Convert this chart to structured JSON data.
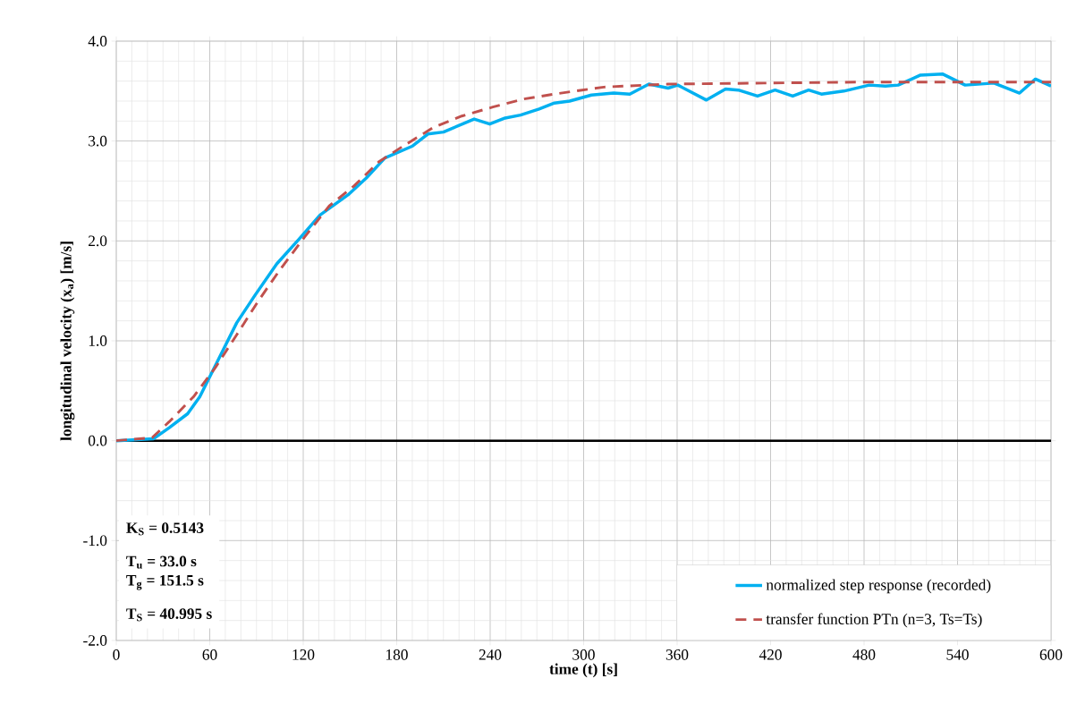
{
  "chart_data": {
    "type": "line",
    "xlabel": "time (t) [s]",
    "ylabel": "longitudinal velocity (x$_{a}$) [m/s]",
    "xlim": [
      0,
      600
    ],
    "xticks": [
      0,
      60,
      120,
      180,
      240,
      300,
      360,
      420,
      480,
      540,
      600
    ],
    "ylim": [
      -2,
      4
    ],
    "yticks": [
      {
        "value": -2,
        "label": "-2.0"
      },
      {
        "value": -1,
        "label": "-1.0"
      },
      {
        "value": 0,
        "label": "0.0"
      },
      {
        "value": 1,
        "label": "1.0"
      },
      {
        "value": 2,
        "label": "2.0"
      },
      {
        "value": 3,
        "label": "3.0"
      },
      {
        "value": 4,
        "label": "4.0"
      }
    ],
    "grid": true,
    "legend": "bottom right",
    "ref_lines": [
      {
        "axis": "y",
        "value": 0,
        "color": "#000000"
      }
    ],
    "annotations": [
      "K$_{S}$ = 0.5143",
      "T$_{u}$ = 33.0 s",
      "T$_{g}$ = 151.5 s",
      "T$_{S}$ = 40.995 s"
    ],
    "series": [
      {
        "name": "normalized step response (recorded)",
        "color": "#00b0f0",
        "line_style": "solid",
        "x": [
          0,
          24,
          34,
          45.8,
          53.6,
          63.5,
          77.3,
          89.2,
          103,
          116.9,
          130.8,
          148.7,
          160.5,
          172.4,
          190.2,
          200,
          210,
          229.7,
          239.7,
          249.6,
          259.5,
          271.4,
          281.2,
          291,
          305,
          319.3,
          329.6,
          341.9,
          354.2,
          360.4,
          378.8,
          391.1,
          399.3,
          411.6,
          422.9,
          434.2,
          444.4,
          452.6,
          467,
          483.3,
          493.7,
          501.9,
          516.2,
          530.6,
          544.9,
          563.4,
          579.8,
          590,
          600
        ],
        "values": [
          0,
          0.02,
          0.13,
          0.27,
          0.44,
          0.75,
          1.18,
          1.46,
          1.77,
          2.01,
          2.26,
          2.46,
          2.63,
          2.83,
          2.95,
          3.07,
          3.09,
          3.22,
          3.17,
          3.23,
          3.26,
          3.32,
          3.38,
          3.4,
          3.46,
          3.48,
          3.47,
          3.57,
          3.53,
          3.56,
          3.41,
          3.52,
          3.51,
          3.45,
          3.51,
          3.45,
          3.51,
          3.47,
          3.5,
          3.56,
          3.55,
          3.56,
          3.66,
          3.67,
          3.56,
          3.58,
          3.48,
          3.62,
          3.55
        ]
      },
      {
        "name": "transfer function PTn (n=3, Ts=Ts)",
        "color": "#c0504d",
        "line_style": "dashed",
        "x": [
          0,
          23,
          34,
          49.6,
          63.5,
          77.3,
          91.2,
          105,
          120.9,
          136.7,
          152.6,
          168.4,
          184.2,
          204,
          221.8,
          241.7,
          261.4,
          281.2,
          299,
          313,
          354,
          415.6,
          477,
          600
        ],
        "values": [
          0,
          0.03,
          0.19,
          0.44,
          0.73,
          1.06,
          1.4,
          1.71,
          2.04,
          2.35,
          2.55,
          2.79,
          2.95,
          3.14,
          3.25,
          3.34,
          3.42,
          3.47,
          3.51,
          3.54,
          3.57,
          3.58,
          3.59,
          3.59
        ]
      }
    ]
  }
}
